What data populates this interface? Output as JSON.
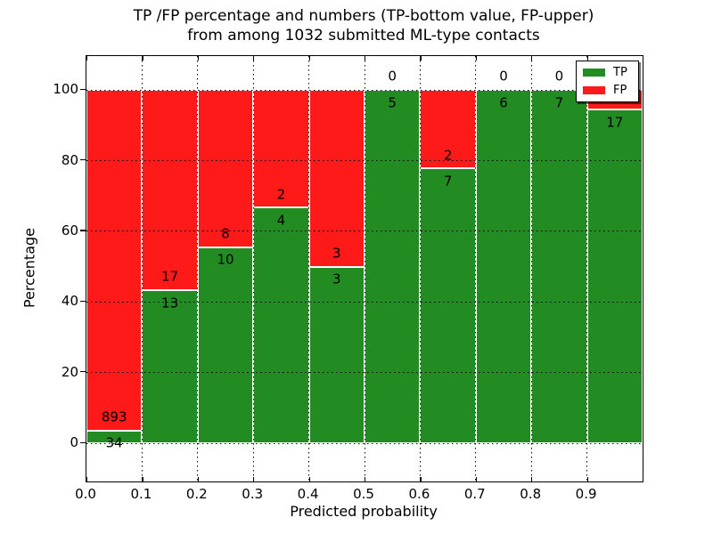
{
  "chart_data": {
    "type": "bar",
    "stacked": true,
    "title_line1": "TP /FP percentage and numbers (TP-bottom value, FP-upper)",
    "title_line2": "from among 1032 submitted ML-type contacts",
    "xlabel": "Predicted probability",
    "ylabel": "Percentage",
    "total_contacts": 1032,
    "categories": [
      "0.0-0.1",
      "0.1-0.2",
      "0.2-0.3",
      "0.3-0.4",
      "0.4-0.5",
      "0.5-0.6",
      "0.6-0.7",
      "0.7-0.8",
      "0.8-0.9",
      "0.9-1.0"
    ],
    "series": [
      {
        "name": "TP",
        "color": "#228b22",
        "values": [
          34,
          13,
          10,
          4,
          3,
          5,
          7,
          6,
          7,
          17
        ]
      },
      {
        "name": "FP",
        "color": "#ff1a1a",
        "values": [
          893,
          17,
          8,
          2,
          3,
          0,
          2,
          0,
          0,
          1
        ]
      }
    ],
    "x_tick_labels": [
      "0.0",
      "0.1",
      "0.2",
      "0.3",
      "0.4",
      "0.5",
      "0.6",
      "0.7",
      "0.8",
      "0.9"
    ],
    "y_tick_values": [
      0,
      20,
      40,
      60,
      80,
      100
    ],
    "y_tick_labels": [
      "0",
      "20",
      "40",
      "60",
      "80",
      "100"
    ],
    "xlim": [
      0,
      1
    ],
    "ylim": [
      -10.8,
      109.6
    ],
    "bin_width": 0.1,
    "grid": "dotted",
    "bar_edge_color": "#ffffff",
    "legend": {
      "position": "upper right",
      "entries": [
        "TP",
        "FP"
      ]
    }
  }
}
